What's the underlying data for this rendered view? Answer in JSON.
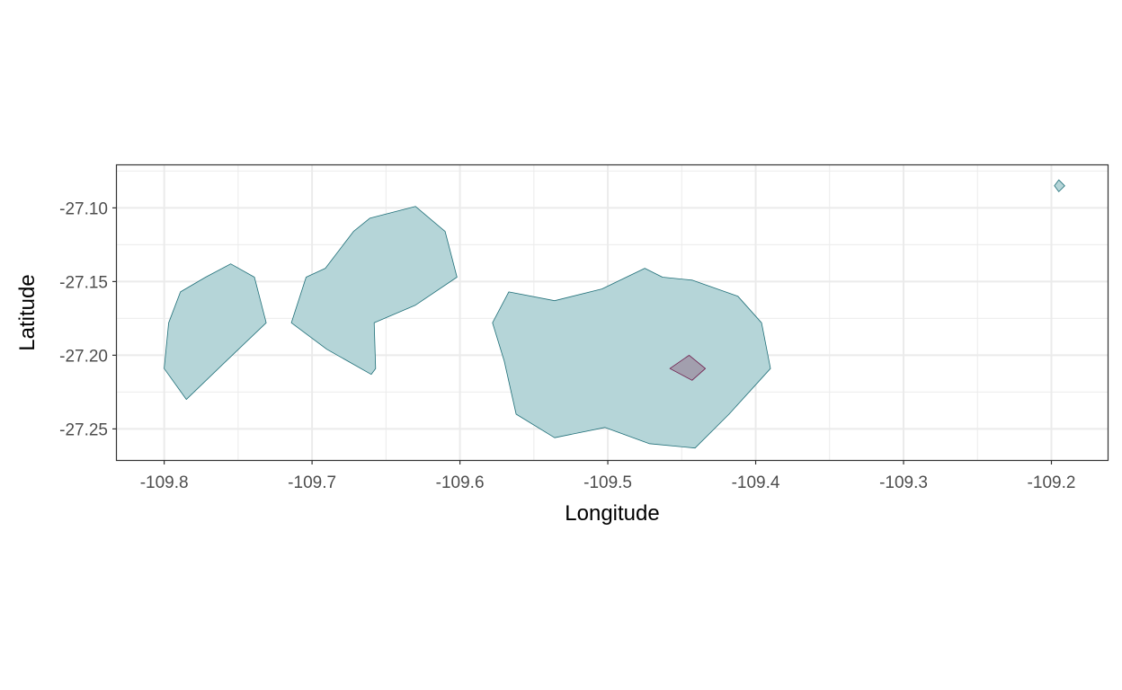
{
  "chart_data": {
    "type": "map",
    "title": "",
    "xlabel": "Longitude",
    "ylabel": "Latitude",
    "xlim": [
      -109.832,
      -109.162
    ],
    "ylim": [
      -27.2711,
      -27.0711
    ],
    "x_ticks": [
      -109.8,
      -109.7,
      -109.6,
      -109.5,
      -109.4,
      -109.3,
      -109.2
    ],
    "x_tick_labels": [
      "-109.8",
      "-109.7",
      "-109.6",
      "-109.5",
      "-109.4",
      "-109.3",
      "-109.2"
    ],
    "y_ticks": [
      -27.1,
      -27.15,
      -27.2,
      -27.25
    ],
    "y_tick_labels": [
      "-27.10",
      "-27.15",
      "-27.20",
      "-27.25"
    ],
    "grid": true,
    "colors": {
      "island_fill": "#b5d5d8",
      "island_stroke": "#1f6f78",
      "inner_fill": "#a29fae",
      "inner_stroke": "#6e1a4a",
      "panel_border": "#333333",
      "grid": "#ebebeb"
    },
    "polygons": [
      {
        "name": "region-west",
        "fill": "island_fill",
        "points": [
          [
            -109.8,
            -27.209
          ],
          [
            -109.797,
            -27.178
          ],
          [
            -109.789,
            -27.157
          ],
          [
            -109.772,
            -27.147
          ],
          [
            -109.755,
            -27.138
          ],
          [
            -109.739,
            -27.147
          ],
          [
            -109.731,
            -27.178
          ],
          [
            -109.754,
            -27.2
          ],
          [
            -109.785,
            -27.23
          ],
          [
            -109.8,
            -27.209
          ]
        ]
      },
      {
        "name": "region-north",
        "fill": "island_fill",
        "points": [
          [
            -109.714,
            -27.178
          ],
          [
            -109.704,
            -27.147
          ],
          [
            -109.691,
            -27.141
          ],
          [
            -109.672,
            -27.116
          ],
          [
            -109.661,
            -27.107
          ],
          [
            -109.63,
            -27.099
          ],
          [
            -109.61,
            -27.116
          ],
          [
            -109.602,
            -27.147
          ],
          [
            -109.63,
            -27.166
          ],
          [
            -109.658,
            -27.178
          ],
          [
            -109.657,
            -27.209
          ],
          [
            -109.66,
            -27.213
          ],
          [
            -109.69,
            -27.196
          ],
          [
            -109.714,
            -27.178
          ]
        ]
      },
      {
        "name": "region-east",
        "fill": "island_fill",
        "points": [
          [
            -109.578,
            -27.178
          ],
          [
            -109.567,
            -27.157
          ],
          [
            -109.536,
            -27.163
          ],
          [
            -109.504,
            -27.155
          ],
          [
            -109.475,
            -27.141
          ],
          [
            -109.463,
            -27.147
          ],
          [
            -109.443,
            -27.149
          ],
          [
            -109.412,
            -27.16
          ],
          [
            -109.396,
            -27.178
          ],
          [
            -109.39,
            -27.209
          ],
          [
            -109.418,
            -27.24
          ],
          [
            -109.441,
            -27.263
          ],
          [
            -109.472,
            -27.26
          ],
          [
            -109.502,
            -27.249
          ],
          [
            -109.536,
            -27.256
          ],
          [
            -109.562,
            -27.24
          ],
          [
            -109.57,
            -27.204
          ],
          [
            -109.578,
            -27.178
          ]
        ]
      },
      {
        "name": "inner-region",
        "fill": "inner_fill",
        "points": [
          [
            -109.458,
            -27.209
          ],
          [
            -109.445,
            -27.2
          ],
          [
            -109.434,
            -27.209
          ],
          [
            -109.443,
            -27.217
          ],
          [
            -109.458,
            -27.209
          ]
        ]
      },
      {
        "name": "small-islet",
        "fill": "island_fill",
        "points": [
          [
            -109.198,
            -27.085
          ],
          [
            -109.195,
            -27.081
          ],
          [
            -109.191,
            -27.085
          ],
          [
            -109.195,
            -27.089
          ],
          [
            -109.198,
            -27.085
          ]
        ]
      }
    ]
  }
}
